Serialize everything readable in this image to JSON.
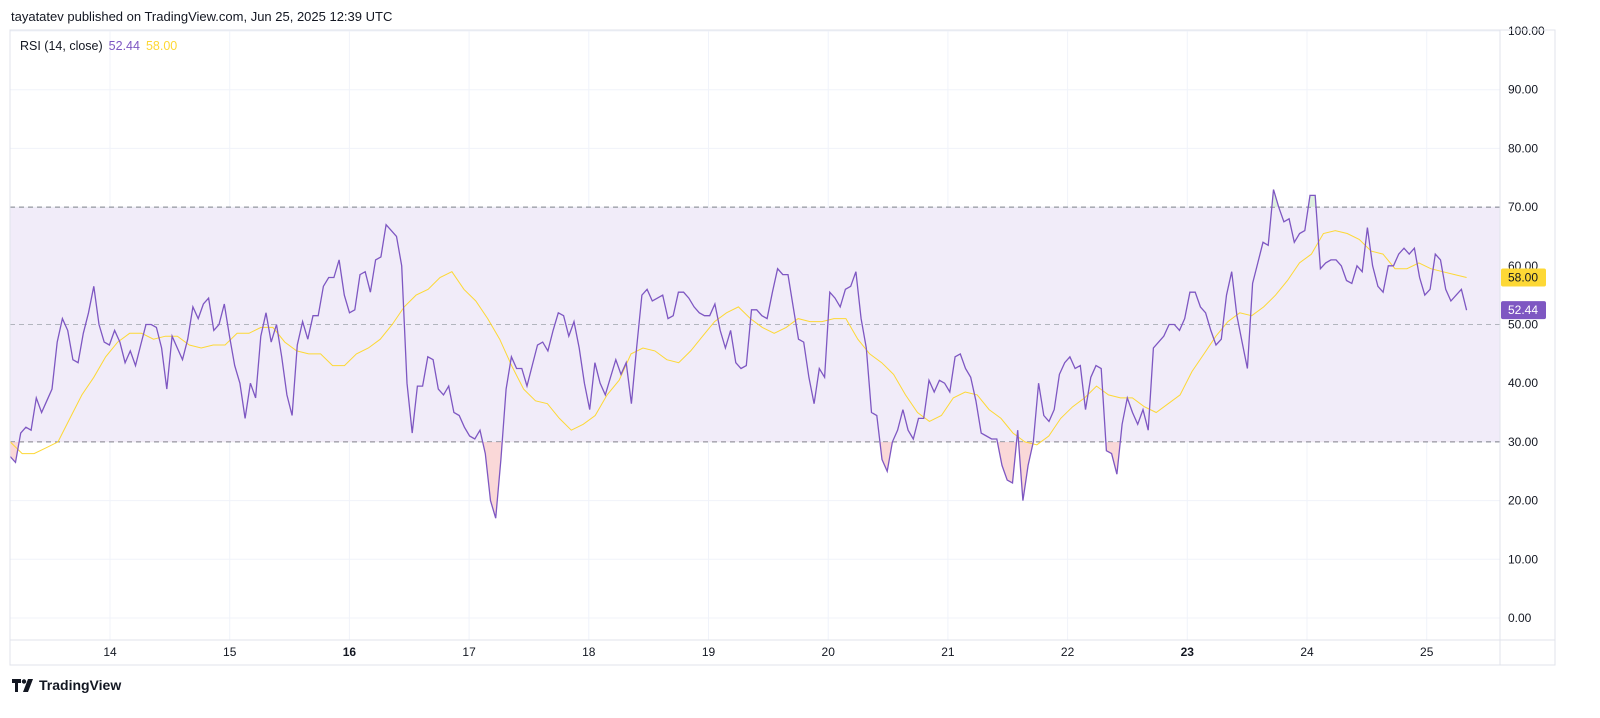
{
  "header": {
    "published": "tayatatev published on TradingView.com, Jun 25, 2025 12:39 UTC"
  },
  "legend": {
    "name": "RSI (14, close)",
    "rsi_value": "52.44",
    "ma_value": "58.00"
  },
  "footer": {
    "brand": "TradingView",
    "logo_icon": "tradingview-logo-icon"
  },
  "colors": {
    "rsi": "#7e57c2",
    "ma": "#fdd835",
    "band": "#f1ecf9",
    "oversold_fill": "#f8c8c8"
  },
  "chart_data": {
    "type": "line",
    "ylim": [
      -5,
      100
    ],
    "y_ticks": [
      "100.00",
      "90.00",
      "80.00",
      "70.00",
      "60.00",
      "50.00",
      "40.00",
      "30.00",
      "20.00",
      "10.00",
      "0.00"
    ],
    "x_ticks": [
      {
        "day": 14,
        "label": "14"
      },
      {
        "day": 15,
        "label": "15"
      },
      {
        "day": 16,
        "label": "16",
        "bold": true
      },
      {
        "day": 17,
        "label": "17"
      },
      {
        "day": 18,
        "label": "18"
      },
      {
        "day": 19,
        "label": "19"
      },
      {
        "day": 20,
        "label": "20"
      },
      {
        "day": 21,
        "label": "21"
      },
      {
        "day": 22,
        "label": "22"
      },
      {
        "day": 23,
        "label": "23",
        "bold": true
      },
      {
        "day": 24,
        "label": "24"
      },
      {
        "day": 25,
        "label": "25"
      }
    ],
    "band": {
      "upper": 70,
      "middle": 50,
      "lower": 30
    },
    "grid": true,
    "x_start": "2025-06-13 04:00",
    "x_end": "2025-06-25 08:00",
    "price_labels": [
      {
        "value": "58.00",
        "series": "ma"
      },
      {
        "value": "52.44",
        "series": "rsi"
      }
    ],
    "series": [
      {
        "key": "rsi",
        "values": [
          27.5,
          26.5,
          31.5,
          32.5,
          32,
          37.5,
          35,
          37,
          39,
          47,
          51,
          49,
          44,
          43.5,
          48.5,
          52,
          56.5,
          50,
          47,
          46.5,
          49,
          47,
          43.5,
          45.5,
          43,
          46.5,
          50,
          50,
          49.5,
          46,
          39,
          48,
          46,
          44,
          47.5,
          53,
          51,
          53.5,
          54.5,
          49,
          50,
          53.5,
          48,
          43,
          40,
          34,
          40,
          37.5,
          48,
          52,
          47,
          50,
          44.5,
          38,
          34.5,
          46.5,
          50.5,
          47.5,
          51.5,
          51.5,
          56.5,
          58,
          58,
          61,
          55,
          52,
          52.5,
          58.5,
          59,
          55.5,
          61,
          61.5,
          67,
          66,
          65,
          60,
          40,
          31.5,
          39.5,
          39.5,
          44.5,
          44,
          39,
          38,
          39.5,
          35,
          34.5,
          32.5,
          31,
          30.5,
          32,
          28,
          20,
          17,
          27,
          39,
          44.5,
          42.5,
          42.5,
          39.5,
          43,
          46.5,
          47,
          45.5,
          49,
          52,
          51.5,
          48,
          50.5,
          46,
          40,
          35.5,
          43.5,
          40,
          38,
          41,
          44,
          41.5,
          43.5,
          36.5,
          46,
          55,
          56,
          54,
          54.5,
          55,
          51,
          51.5,
          55.5,
          55.5,
          54.5,
          53,
          52,
          51.5,
          51.5,
          53.5,
          49,
          46,
          49,
          43.5,
          42.5,
          43,
          52.5,
          52.5,
          51.5,
          51,
          55.5,
          59.5,
          58.5,
          58.5,
          53,
          47.5,
          47,
          41,
          36.5,
          42.5,
          41,
          55.5,
          54.5,
          53,
          56,
          56.5,
          59,
          51,
          46,
          35,
          34.5,
          27,
          25,
          30,
          32,
          35.5,
          32,
          30.5,
          34,
          34,
          40.5,
          38.5,
          40.5,
          40,
          38.5,
          44.5,
          45,
          42.5,
          41,
          37,
          31.5,
          31,
          30.5,
          30.5,
          26,
          23.5,
          23,
          32,
          20,
          26,
          30,
          40,
          34.5,
          33.5,
          35.5,
          41.5,
          43.5,
          44.5,
          42.5,
          43,
          35.5,
          41,
          43,
          42.5,
          28.5,
          28,
          24.5,
          33,
          37.5,
          35,
          33,
          35.5,
          32,
          46,
          47,
          48,
          50,
          50,
          49,
          51,
          55.5,
          55.5,
          53,
          52,
          49,
          46.5,
          47.5,
          55,
          59,
          51.5,
          47,
          42.5,
          57,
          60.5,
          64,
          63.5,
          73,
          70,
          67.5,
          68,
          64,
          65.5,
          66,
          72,
          72,
          59.5,
          60.5,
          61,
          61,
          60,
          57.5,
          57,
          60,
          59,
          66.5,
          60,
          56.5,
          55.5,
          60,
          60,
          62,
          63,
          62,
          63,
          58,
          55,
          56,
          62,
          61,
          56,
          54,
          55,
          56,
          52.44
        ]
      },
      {
        "key": "ma",
        "values": [
          30,
          28,
          28,
          29,
          30,
          34,
          38,
          41,
          44.5,
          47,
          48.5,
          48.5,
          47.5,
          48,
          48,
          46.5,
          46,
          46.5,
          46.5,
          48.5,
          48.5,
          49.5,
          49.5,
          47,
          45.5,
          45,
          45,
          43,
          43,
          45,
          46,
          47.5,
          50,
          53,
          55,
          56,
          58,
          59,
          56,
          54,
          51,
          47.5,
          43,
          39,
          37,
          36.5,
          34,
          32,
          33,
          34.5,
          38,
          40.5,
          45,
          46,
          45.5,
          44,
          43.5,
          45.5,
          48,
          50.5,
          52,
          53,
          51,
          49.5,
          48.5,
          49.5,
          51,
          50.5,
          50.5,
          51,
          51,
          47.5,
          45,
          43.5,
          41.5,
          38,
          35,
          33.5,
          34.5,
          37.5,
          38.5,
          38,
          35.5,
          34,
          31.5,
          30,
          29.5,
          31,
          34,
          36,
          37.5,
          39.5,
          38,
          37.5,
          37.5,
          36,
          35,
          36.5,
          38,
          42,
          45,
          48,
          50.5,
          52,
          51.5,
          53,
          55,
          57.5,
          60.5,
          62,
          65.5,
          66,
          65.5,
          64.5,
          62.5,
          62,
          59.5,
          59.5,
          60.5,
          59.5,
          59,
          58.5,
          58
        ]
      }
    ]
  }
}
